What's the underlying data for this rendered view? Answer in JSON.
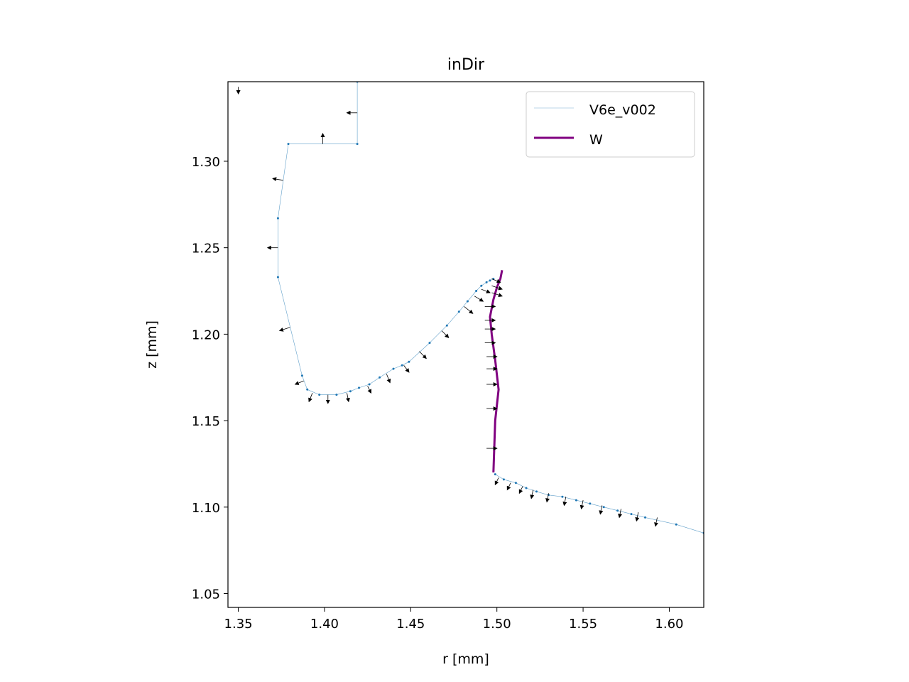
{
  "chart_data": {
    "type": "line",
    "title": "inDir",
    "xlabel": "r [mm]",
    "ylabel": "z [mm]",
    "xlim": [
      1.344,
      1.62
    ],
    "ylim": [
      1.042,
      1.346
    ],
    "xticks": [
      "1.35",
      "1.40",
      "1.45",
      "1.50",
      "1.55",
      "1.60"
    ],
    "yticks": [
      "1.05",
      "1.10",
      "1.15",
      "1.20",
      "1.25",
      "1.30"
    ],
    "legend_position": "upper right",
    "grid": false,
    "series": [
      {
        "name": "V6e_v002",
        "color": "#1f77b4",
        "style": "thin line with point markers",
        "points": [
          [
            1.419,
            1.346
          ],
          [
            1.419,
            1.31
          ],
          [
            1.379,
            1.31
          ],
          [
            1.373,
            1.267
          ],
          [
            1.373,
            1.233
          ],
          [
            1.387,
            1.176
          ],
          [
            1.39,
            1.168
          ],
          [
            1.397,
            1.165
          ],
          [
            1.407,
            1.165
          ],
          [
            1.415,
            1.167
          ],
          [
            1.42,
            1.169
          ],
          [
            1.426,
            1.171
          ],
          [
            1.432,
            1.175
          ],
          [
            1.44,
            1.18
          ],
          [
            1.445,
            1.182
          ],
          [
            1.449,
            1.184
          ],
          [
            1.461,
            1.195
          ],
          [
            1.471,
            1.205
          ],
          [
            1.478,
            1.213
          ],
          [
            1.483,
            1.219
          ],
          [
            1.488,
            1.225
          ],
          [
            1.491,
            1.228
          ],
          [
            1.494,
            1.23
          ],
          [
            1.496,
            1.231
          ],
          [
            1.498,
            1.232
          ]
        ]
      },
      {
        "name": "V6e_v002",
        "color": "#1f77b4",
        "style": "thin line with point markers",
        "points": [
          [
            1.499,
            1.119
          ],
          [
            1.504,
            1.116
          ],
          [
            1.511,
            1.114
          ],
          [
            1.517,
            1.111
          ],
          [
            1.523,
            1.109
          ],
          [
            1.53,
            1.107
          ],
          [
            1.538,
            1.106
          ],
          [
            1.546,
            1.104
          ],
          [
            1.554,
            1.102
          ],
          [
            1.562,
            1.1
          ],
          [
            1.57,
            1.098
          ],
          [
            1.578,
            1.096
          ],
          [
            1.586,
            1.094
          ],
          [
            1.604,
            1.09
          ],
          [
            1.62,
            1.085
          ]
        ]
      },
      {
        "name": "W",
        "color": "#800080",
        "style": "thick line",
        "points": [
          [
            1.498,
            1.12
          ],
          [
            1.499,
            1.15
          ],
          [
            1.501,
            1.168
          ],
          [
            1.499,
            1.185
          ],
          [
            1.497,
            1.2
          ],
          [
            1.496,
            1.21
          ],
          [
            1.498,
            1.22
          ],
          [
            1.5,
            1.227
          ],
          [
            1.502,
            1.232
          ],
          [
            1.503,
            1.237
          ]
        ]
      }
    ],
    "arrows": [
      [
        1.35,
        1.343,
        0.0,
        -0.004
      ],
      [
        1.419,
        1.328,
        -0.006,
        0.0
      ],
      [
        1.399,
        1.31,
        0.0,
        0.006
      ],
      [
        1.376,
        1.289,
        -0.006,
        0.001
      ],
      [
        1.373,
        1.25,
        -0.006,
        0.0
      ],
      [
        1.38,
        1.204,
        -0.006,
        -0.002
      ],
      [
        1.388,
        1.173,
        -0.005,
        -0.002
      ],
      [
        1.393,
        1.166,
        -0.002,
        -0.005
      ],
      [
        1.402,
        1.165,
        0.0,
        -0.005
      ],
      [
        1.413,
        1.166,
        0.001,
        -0.005
      ],
      [
        1.425,
        1.17,
        0.002,
        -0.004
      ],
      [
        1.436,
        1.177,
        0.002,
        -0.005
      ],
      [
        1.446,
        1.182,
        0.003,
        -0.004
      ],
      [
        1.455,
        1.19,
        0.004,
        -0.004
      ],
      [
        1.468,
        1.202,
        0.004,
        -0.004
      ],
      [
        1.481,
        1.216,
        0.005,
        -0.004
      ],
      [
        1.487,
        1.222,
        0.005,
        -0.003
      ],
      [
        1.491,
        1.226,
        0.005,
        -0.002
      ],
      [
        1.497,
        1.232,
        0.005,
        -0.002
      ],
      [
        1.497,
        1.228,
        0.006,
        -0.002
      ],
      [
        1.497,
        1.224,
        0.006,
        -0.002
      ],
      [
        1.493,
        1.216,
        0.006,
        0.0
      ],
      [
        1.493,
        1.208,
        0.006,
        0.0
      ],
      [
        1.493,
        1.203,
        0.006,
        0.0
      ],
      [
        1.493,
        1.195,
        0.006,
        0.0
      ],
      [
        1.494,
        1.187,
        0.006,
        0.0
      ],
      [
        1.494,
        1.18,
        0.006,
        0.0
      ],
      [
        1.494,
        1.171,
        0.006,
        0.0
      ],
      [
        1.494,
        1.157,
        0.006,
        0.0
      ],
      [
        1.494,
        1.134,
        0.006,
        0.0
      ],
      [
        1.501,
        1.117,
        -0.002,
        -0.004
      ],
      [
        1.508,
        1.114,
        -0.002,
        -0.004
      ],
      [
        1.515,
        1.112,
        -0.002,
        -0.004
      ],
      [
        1.521,
        1.11,
        -0.001,
        -0.005
      ],
      [
        1.53,
        1.108,
        -0.001,
        -0.005
      ],
      [
        1.54,
        1.106,
        -0.001,
        -0.005
      ],
      [
        1.55,
        1.104,
        -0.001,
        -0.005
      ],
      [
        1.561,
        1.101,
        -0.001,
        -0.005
      ],
      [
        1.572,
        1.099,
        -0.001,
        -0.005
      ],
      [
        1.582,
        1.097,
        -0.001,
        -0.005
      ],
      [
        1.593,
        1.094,
        -0.001,
        -0.005
      ]
    ]
  }
}
